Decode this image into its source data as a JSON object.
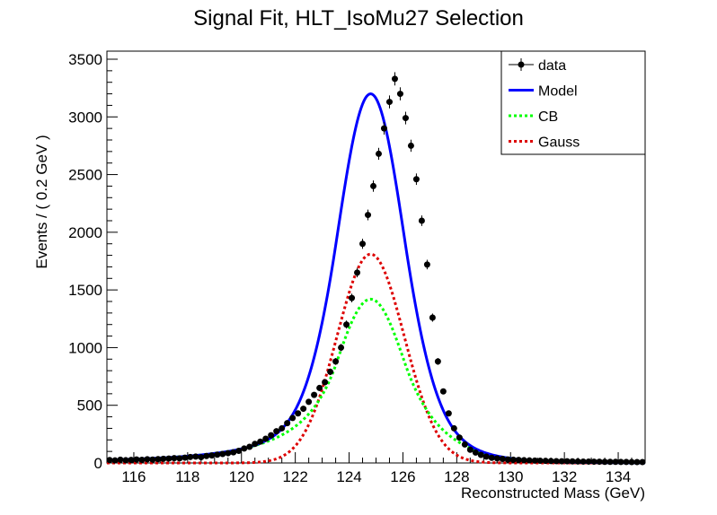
{
  "chart_data": {
    "type": "scatter",
    "title": "Signal Fit, HLT_IsoMu27 Selection",
    "xlabel": "Reconstructed Mass (GeV)",
    "ylabel": "Events / ( 0.2 GeV )",
    "xlim": [
      115,
      135
    ],
    "ylim": [
      0,
      3570
    ],
    "grid": false,
    "legend_position": "top-right",
    "x_ticks": [
      "116",
      "118",
      "120",
      "122",
      "124",
      "126",
      "128",
      "130",
      "132",
      "134"
    ],
    "y_ticks": [
      "0",
      "500",
      "1000",
      "1500",
      "2000",
      "2500",
      "3000",
      "3500"
    ],
    "legend": [
      {
        "label": "data",
        "color": "#000000",
        "style": "marker"
      },
      {
        "label": "Model",
        "color": "#0000ff",
        "style": "solid"
      },
      {
        "label": "CB",
        "color": "#00ff00",
        "style": "dotted"
      },
      {
        "label": "Gauss",
        "color": "#dd0000",
        "style": "dotted"
      }
    ],
    "data_points": {
      "x": [
        115.1,
        115.3,
        115.5,
        115.7,
        115.9,
        116.1,
        116.3,
        116.5,
        116.7,
        116.9,
        117.1,
        117.3,
        117.5,
        117.7,
        117.9,
        118.1,
        118.3,
        118.5,
        118.7,
        118.9,
        119.1,
        119.3,
        119.5,
        119.7,
        119.9,
        120.1,
        120.3,
        120.5,
        120.7,
        120.9,
        121.1,
        121.3,
        121.5,
        121.7,
        121.9,
        122.1,
        122.3,
        122.5,
        122.7,
        122.9,
        123.1,
        123.3,
        123.5,
        123.7,
        123.9,
        124.1,
        124.3,
        124.5,
        124.7,
        124.9,
        125.1,
        125.3,
        125.5,
        125.7,
        125.9,
        126.1,
        126.3,
        126.5,
        126.7,
        126.9,
        127.1,
        127.3,
        127.5,
        127.7,
        127.9,
        128.1,
        128.3,
        128.5,
        128.7,
        128.9,
        129.1,
        129.3,
        129.5,
        129.7,
        129.9,
        130.1,
        130.3,
        130.5,
        130.7,
        130.9,
        131.1,
        131.3,
        131.5,
        131.7,
        131.9,
        132.1,
        132.3,
        132.5,
        132.7,
        132.9,
        133.1,
        133.3,
        133.5,
        133.7,
        133.9,
        134.1,
        134.3,
        134.5,
        134.7,
        134.9
      ],
      "y": [
        25,
        22,
        28,
        24,
        26,
        30,
        27,
        32,
        29,
        33,
        36,
        38,
        42,
        40,
        46,
        52,
        55,
        50,
        60,
        65,
        72,
        78,
        85,
        92,
        105,
        125,
        140,
        165,
        185,
        210,
        240,
        275,
        300,
        345,
        390,
        430,
        470,
        530,
        590,
        650,
        700,
        790,
        880,
        1000,
        1200,
        1430,
        1650,
        1900,
        2150,
        2400,
        2680,
        2900,
        3130,
        3330,
        3200,
        2990,
        2750,
        2460,
        2100,
        1720,
        1260,
        880,
        620,
        430,
        300,
        220,
        160,
        115,
        90,
        70,
        55,
        45,
        40,
        35,
        30,
        28,
        26,
        24,
        22,
        20,
        19,
        18,
        17,
        16,
        15,
        15,
        14,
        13,
        12,
        12,
        11,
        11,
        10,
        10,
        10,
        9,
        9,
        8,
        8,
        8
      ],
      "y_error_approx": "sqrt(N)"
    },
    "curves": {
      "peak_position": 124.8,
      "model_peak": 3200,
      "gauss_peak": 1810,
      "cb_peak": 1420
    }
  }
}
